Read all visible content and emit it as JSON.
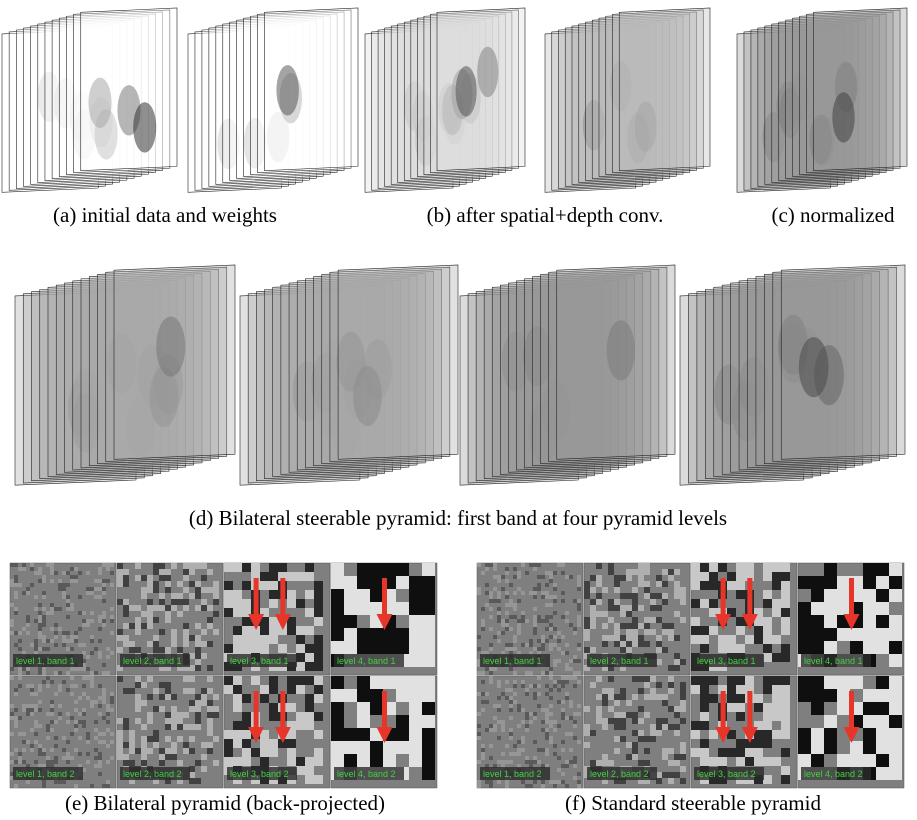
{
  "figure": {
    "row1": {
      "captions": [
        "(a) initial data and weights",
        "(b) after spatial+depth conv.",
        "(c) normalized"
      ]
    },
    "row2": {
      "caption": "(d) Bilateral steerable pyramid: first band at four pyramid levels"
    },
    "panels": [
      {
        "caption": "(e) Bilateral pyramid (back-projected)",
        "tiles": [
          "level 1, band 1",
          "level 2, band 1",
          "level 3, band 1",
          "level 4, band 1",
          "level 1, band 2",
          "level 2, band 2",
          "level 3, band 2",
          "level 4, band 2"
        ]
      },
      {
        "caption": "(f) Standard steerable pyramid",
        "tiles": [
          "level 1, band 1",
          "level 2, band 1",
          "level 3, band 1",
          "level 4, band 1",
          "level 1, band 2",
          "level 2, band 2",
          "level 3, band 2",
          "level 4, band 2"
        ]
      }
    ]
  }
}
